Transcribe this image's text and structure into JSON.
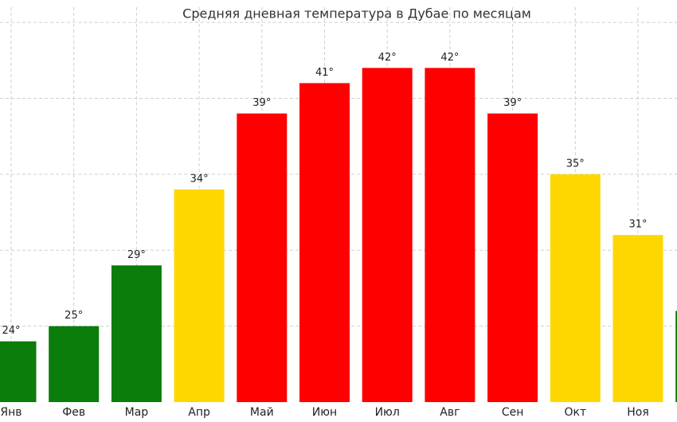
{
  "chart_data": {
    "type": "bar",
    "title": "Средняя дневная температура в Дубае по месяцам",
    "categories": [
      "Янв",
      "Фев",
      "Мар",
      "Апр",
      "Май",
      "Июн",
      "Июл",
      "Авг",
      "Сен",
      "Окт",
      "Ноя",
      null
    ],
    "values": [
      24,
      25,
      29,
      34,
      39,
      41,
      42,
      42,
      39,
      35,
      31,
      26
    ],
    "value_labels": [
      "24°",
      "25°",
      "29°",
      "34°",
      "39°",
      "41°",
      "42°",
      "42°",
      "39°",
      "35°",
      "31°",
      null
    ],
    "colors": [
      "#0a7d0a",
      "#0a7d0a",
      "#0a7d0a",
      "#ffd700",
      "#ff0000",
      "#ff0000",
      "#ff0000",
      "#ff0000",
      "#ff0000",
      "#ffd700",
      "#ffd700",
      "#0a7d0a"
    ],
    "ylim": [
      20,
      46
    ],
    "yticks": [
      25,
      30,
      35,
      40,
      45
    ],
    "grid": true
  }
}
